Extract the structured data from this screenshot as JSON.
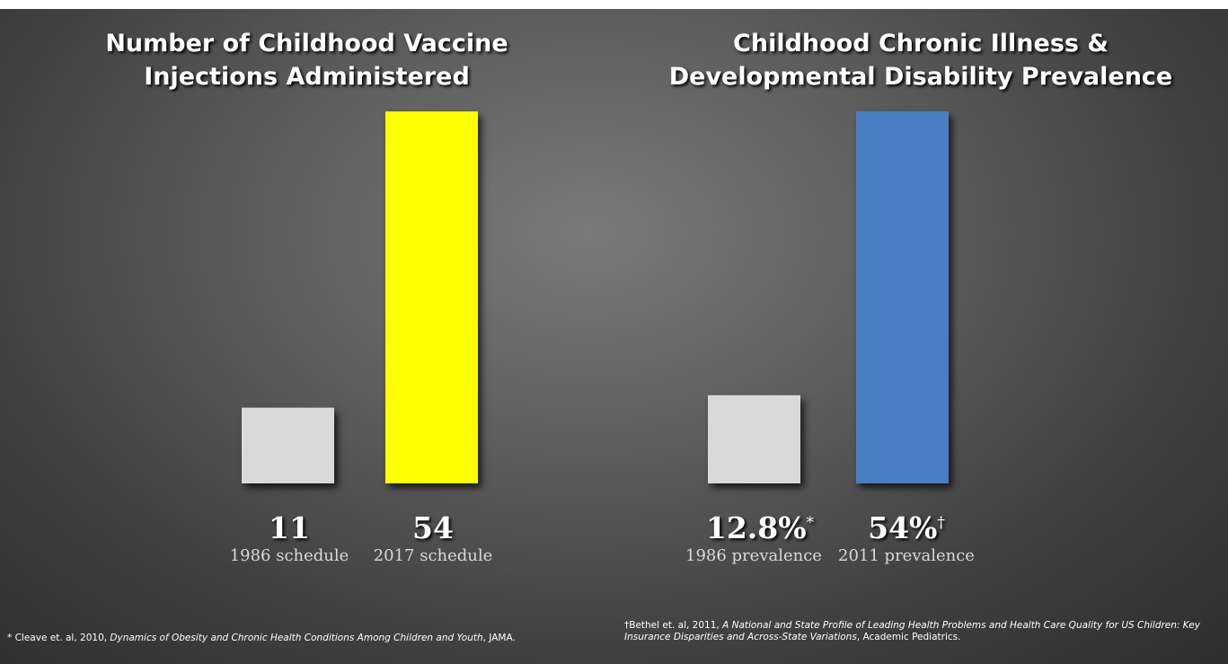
{
  "chart_data": [
    {
      "type": "bar",
      "title_lines": [
        "Number of Childhood Vaccine",
        "Injections Administered"
      ],
      "categories": [
        "1986 schedule",
        "2017 schedule"
      ],
      "values": [
        11,
        54
      ],
      "value_labels": [
        "11",
        "54"
      ],
      "value_marks": [
        "",
        ""
      ],
      "colors": [
        "#d9d9d9",
        "#ffff00"
      ],
      "ylim": [
        0,
        54
      ],
      "grid": false,
      "axes_visible": false
    },
    {
      "type": "bar",
      "title_lines": [
        "Childhood Chronic Illness &",
        "Developmental Disability Prevalence"
      ],
      "categories": [
        "1986 prevalence",
        "2011 prevalence"
      ],
      "values": [
        12.8,
        54
      ],
      "value_labels": [
        "12.8%",
        "54%"
      ],
      "value_marks": [
        "*",
        "†"
      ],
      "colors": [
        "#d9d9d9",
        "#4a7ec4"
      ],
      "ylim": [
        0,
        54
      ],
      "grid": false,
      "axes_visible": false
    }
  ],
  "footnotes": {
    "left": {
      "prefix": "* Cleave et. al, 2010, ",
      "title": "Dynamics of Obesity and Chronic Health Conditions Among Children and Youth",
      "suffix": ", JAMA."
    },
    "right": {
      "prefix": "†Bethel et. al, 2011, ",
      "title": "A National and State Profile of Leading Health Problems and Health Care Quality for US Children: Key Insurance Disparities and Across-State Variations",
      "suffix": ", Academic Pediatrics."
    }
  }
}
